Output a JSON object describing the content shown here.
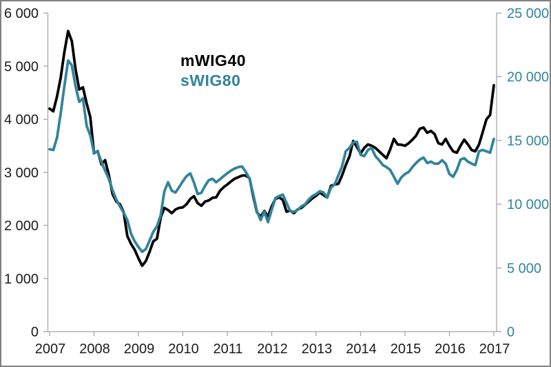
{
  "window": {
    "background_color": "#FFFFFF",
    "border_color": "#808080"
  },
  "legend": {
    "items": [
      {
        "label": "mWIG40",
        "color": "#000000"
      },
      {
        "label": "sWIG80",
        "color": "#31849B"
      }
    ]
  },
  "chart_data": {
    "type": "line",
    "title": "",
    "grid": false,
    "legend_position": "inside-top-left-of-plot",
    "frequency": "monthly",
    "x_start": "2007-01",
    "x_end": "2017-01",
    "x_tick_labels": [
      "2007",
      "2008",
      "2009",
      "2010",
      "2011",
      "2012",
      "2013",
      "2014",
      "2015",
      "2016",
      "2017"
    ],
    "axis_line_color": "#A6A6A6",
    "left_axis": {
      "min": 0,
      "max": 6000,
      "step": 1000,
      "tick_labels": [
        "0",
        "1 000",
        "2 000",
        "3 000",
        "4 000",
        "5 000",
        "6 000"
      ],
      "label_color": "#1A1A1A"
    },
    "right_axis": {
      "min": 0,
      "max": 25000,
      "step": 5000,
      "tick_labels": [
        "0",
        "5 000",
        "10 000",
        "15 000",
        "20 000",
        "25 000"
      ],
      "label_color": "#31849B"
    },
    "x": [
      "2007-01",
      "2007-02",
      "2007-03",
      "2007-04",
      "2007-05",
      "2007-06",
      "2007-07",
      "2007-08",
      "2007-09",
      "2007-10",
      "2007-11",
      "2007-12",
      "2008-01",
      "2008-02",
      "2008-03",
      "2008-04",
      "2008-05",
      "2008-06",
      "2008-07",
      "2008-08",
      "2008-09",
      "2008-10",
      "2008-11",
      "2008-12",
      "2009-01",
      "2009-02",
      "2009-03",
      "2009-04",
      "2009-05",
      "2009-06",
      "2009-07",
      "2009-08",
      "2009-09",
      "2009-10",
      "2009-11",
      "2009-12",
      "2010-01",
      "2010-02",
      "2010-03",
      "2010-04",
      "2010-05",
      "2010-06",
      "2010-07",
      "2010-08",
      "2010-09",
      "2010-10",
      "2010-11",
      "2010-12",
      "2011-01",
      "2011-02",
      "2011-03",
      "2011-04",
      "2011-05",
      "2011-06",
      "2011-07",
      "2011-08",
      "2011-09",
      "2011-10",
      "2011-11",
      "2011-12",
      "2012-01",
      "2012-02",
      "2012-03",
      "2012-04",
      "2012-05",
      "2012-06",
      "2012-07",
      "2012-08",
      "2012-09",
      "2012-10",
      "2012-11",
      "2012-12",
      "2013-01",
      "2013-02",
      "2013-03",
      "2013-04",
      "2013-05",
      "2013-06",
      "2013-07",
      "2013-08",
      "2013-09",
      "2013-10",
      "2013-11",
      "2013-12",
      "2014-01",
      "2014-02",
      "2014-03",
      "2014-04",
      "2014-05",
      "2014-06",
      "2014-07",
      "2014-08",
      "2014-09",
      "2014-10",
      "2014-11",
      "2014-12",
      "2015-01",
      "2015-02",
      "2015-03",
      "2015-04",
      "2015-05",
      "2015-06",
      "2015-07",
      "2015-08",
      "2015-09",
      "2015-10",
      "2015-11",
      "2015-12",
      "2016-01",
      "2016-02",
      "2016-03",
      "2016-04",
      "2016-05",
      "2016-06",
      "2016-07",
      "2016-08",
      "2016-09",
      "2016-10",
      "2016-11",
      "2016-12",
      "2017-01"
    ],
    "series": [
      {
        "name": "mWIG40",
        "axis": "left",
        "color": "#000000",
        "values": [
          4200,
          4150,
          4430,
          4780,
          5270,
          5660,
          5470,
          4950,
          4560,
          4600,
          4300,
          4040,
          3360,
          3400,
          3150,
          3230,
          2950,
          2590,
          2450,
          2400,
          2250,
          1800,
          1650,
          1540,
          1380,
          1240,
          1330,
          1500,
          1700,
          1750,
          2150,
          2330,
          2290,
          2230,
          2300,
          2330,
          2340,
          2400,
          2500,
          2550,
          2420,
          2370,
          2450,
          2470,
          2520,
          2530,
          2650,
          2720,
          2770,
          2830,
          2880,
          2910,
          2940,
          2940,
          2890,
          2550,
          2250,
          2160,
          2270,
          2170,
          2360,
          2500,
          2530,
          2480,
          2260,
          2280,
          2230,
          2300,
          2330,
          2390,
          2450,
          2510,
          2560,
          2620,
          2570,
          2525,
          2745,
          2770,
          2785,
          2940,
          3135,
          3300,
          3590,
          3480,
          3355,
          3460,
          3525,
          3500,
          3460,
          3395,
          3330,
          3265,
          3430,
          3630,
          3525,
          3520,
          3500,
          3550,
          3615,
          3690,
          3820,
          3845,
          3745,
          3780,
          3720,
          3550,
          3525,
          3630,
          3500,
          3395,
          3370,
          3500,
          3615,
          3525,
          3420,
          3395,
          3525,
          3760,
          4000,
          4080,
          4640
        ]
      },
      {
        "name": "sWIG80",
        "axis": "right",
        "color": "#31849B",
        "values": [
          14310,
          14250,
          15230,
          17120,
          19280,
          21275,
          20900,
          19280,
          18030,
          18300,
          16150,
          15400,
          14040,
          14150,
          13300,
          12640,
          11990,
          11100,
          10370,
          9830,
          9340,
          8750,
          7670,
          7080,
          6640,
          6260,
          6480,
          7130,
          7830,
          8270,
          9130,
          11000,
          11720,
          11060,
          10910,
          11340,
          11800,
          12200,
          12420,
          11700,
          10800,
          10900,
          11450,
          11880,
          11990,
          11720,
          11950,
          12200,
          12420,
          12640,
          12800,
          12910,
          12960,
          12530,
          12000,
          10800,
          9450,
          8750,
          9400,
          8590,
          9560,
          10480,
          10640,
          10750,
          10100,
          9450,
          9400,
          9560,
          9830,
          9990,
          10370,
          10640,
          10800,
          11020,
          10910,
          10530,
          11290,
          11560,
          12260,
          12960,
          14150,
          14420,
          14850,
          14900,
          13880,
          13770,
          14260,
          14420,
          13770,
          13450,
          13070,
          12910,
          12690,
          12150,
          11610,
          12100,
          12370,
          12530,
          12910,
          13230,
          13500,
          13660,
          13230,
          13340,
          13180,
          13180,
          13450,
          13180,
          12370,
          12150,
          12690,
          13500,
          13610,
          13340,
          13180,
          13070,
          14150,
          14260,
          14150,
          14040,
          15120
        ]
      }
    ]
  }
}
